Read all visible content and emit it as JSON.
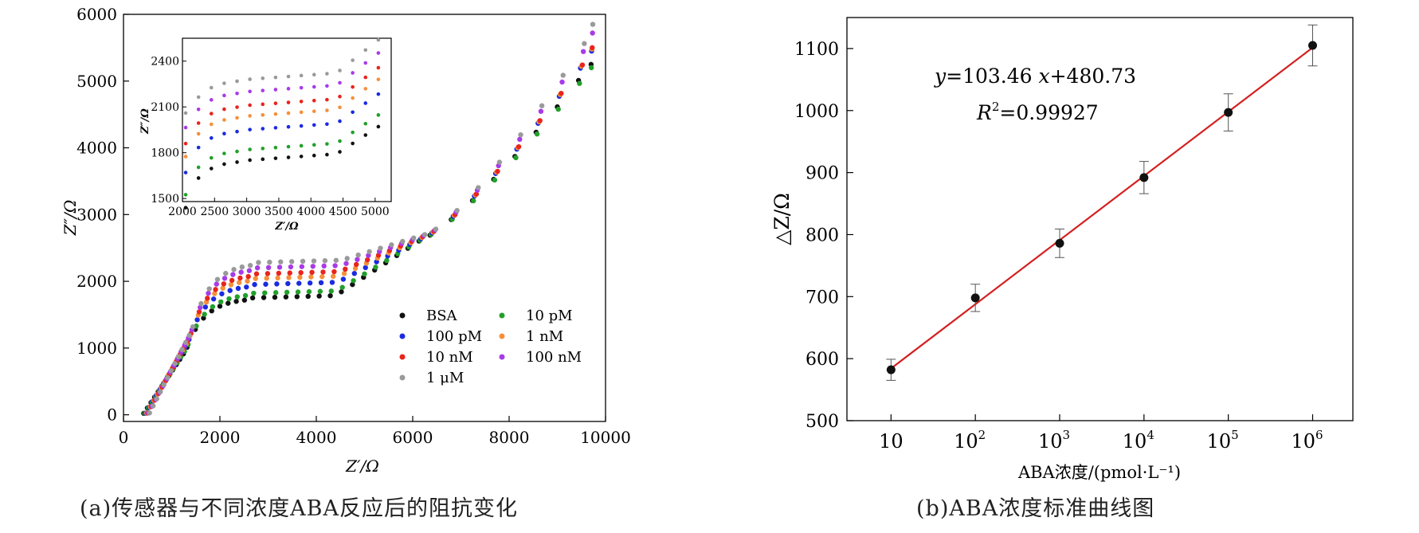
{
  "captions": {
    "a": "(a)传感器与不同浓度ABA反应后的阻抗变化",
    "b": "(b)ABA浓度标准曲线图"
  },
  "chart_data": [
    {
      "type": "scatter",
      "xlabel": "Z′/Ω",
      "ylabel": "Z″/Ω",
      "xlim": [
        0,
        10000
      ],
      "ylim": [
        -100,
        6000
      ],
      "xticks": [
        0,
        2000,
        4000,
        6000,
        8000,
        10000
      ],
      "yticks": [
        0,
        1000,
        2000,
        3000,
        4000,
        5000,
        6000
      ],
      "legend_position": "lower-right",
      "series": [
        {
          "name": "BSA",
          "color": "#111111",
          "plateau": 1750,
          "end": 5250
        },
        {
          "name": "10 pM",
          "color": "#22a02a",
          "plateau": 1820,
          "end": 5200
        },
        {
          "name": "100 pM",
          "color": "#1a2be0",
          "plateau": 1950,
          "end": 5450
        },
        {
          "name": "1 nM",
          "color": "#f5903a",
          "plateau": 2040,
          "end": 5480
        },
        {
          "name": "10 nM",
          "color": "#e8241d",
          "plateau": 2110,
          "end": 5500
        },
        {
          "name": "100 nM",
          "color": "#a83be8",
          "plateau": 2200,
          "end": 5720
        },
        {
          "name": "1 μM",
          "color": "#9a9a9a",
          "plateau": 2280,
          "end": 5850
        }
      ],
      "inset": {
        "xlabel": "Z′/Ω",
        "ylabel": "Z″/Ω",
        "xlim": [
          2000,
          5250
        ],
        "ylim": [
          1480,
          2550
        ],
        "xticks": [
          2000,
          2500,
          3000,
          3500,
          4000,
          4500,
          5000
        ],
        "yticks": [
          1500,
          1800,
          2100,
          2400
        ]
      }
    },
    {
      "type": "scatter",
      "xlabel": "ABA浓度/(pmol·L⁻¹)",
      "ylabel": "△Z/Ω",
      "x_scale": "log",
      "xlim": [
        3,
        3000000
      ],
      "ylim": [
        500,
        1150
      ],
      "xticks": [
        10,
        100,
        1000,
        10000,
        100000,
        1000000
      ],
      "xtick_labels": [
        {
          "base": "10",
          "exp": ""
        },
        {
          "base": "10",
          "exp": "2"
        },
        {
          "base": "10",
          "exp": "3"
        },
        {
          "base": "10",
          "exp": "4"
        },
        {
          "base": "10",
          "exp": "5"
        },
        {
          "base": "10",
          "exp": "6"
        }
      ],
      "yticks": [
        500,
        600,
        700,
        800,
        900,
        1000,
        1100
      ],
      "points": [
        {
          "x": 10,
          "y": 582,
          "err": 17
        },
        {
          "x": 100,
          "y": 698,
          "err": 22
        },
        {
          "x": 1000,
          "y": 786,
          "err": 23
        },
        {
          "x": 10000,
          "y": 892,
          "err": 26
        },
        {
          "x": 100000,
          "y": 997,
          "err": 30
        },
        {
          "x": 1000000,
          "y": 1105,
          "err": 33
        }
      ],
      "fit": {
        "slope": 103.46,
        "intercept": 480.73,
        "color": "#d42020"
      },
      "equation": {
        "y": "y",
        "eq1": "=103.46 ",
        "x": "x",
        "eq2": "+480.73",
        "r": "R",
        "r_exp": "2",
        "r_val": "=0.99927"
      }
    }
  ]
}
